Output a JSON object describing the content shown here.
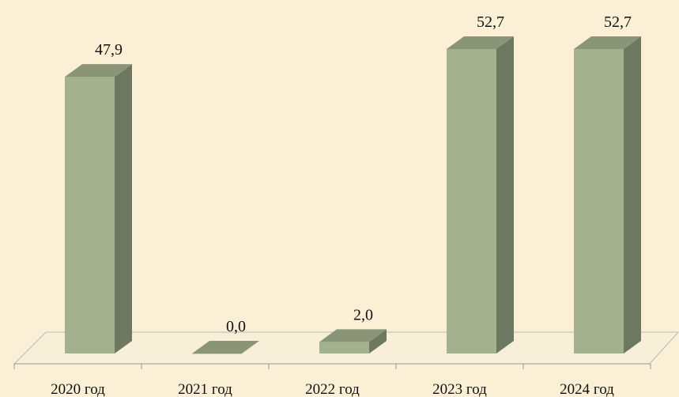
{
  "chart_data": {
    "type": "bar3d",
    "categories": [
      "2020 год",
      "2021 год",
      "2022 год",
      "2023 год",
      "2024 год"
    ],
    "values": [
      47.9,
      0.0,
      2.0,
      52.7,
      52.7
    ],
    "value_labels": [
      "47,9",
      "0,0",
      "2,0",
      "52,7",
      "52,7"
    ],
    "color": "#a4b18e"
  }
}
